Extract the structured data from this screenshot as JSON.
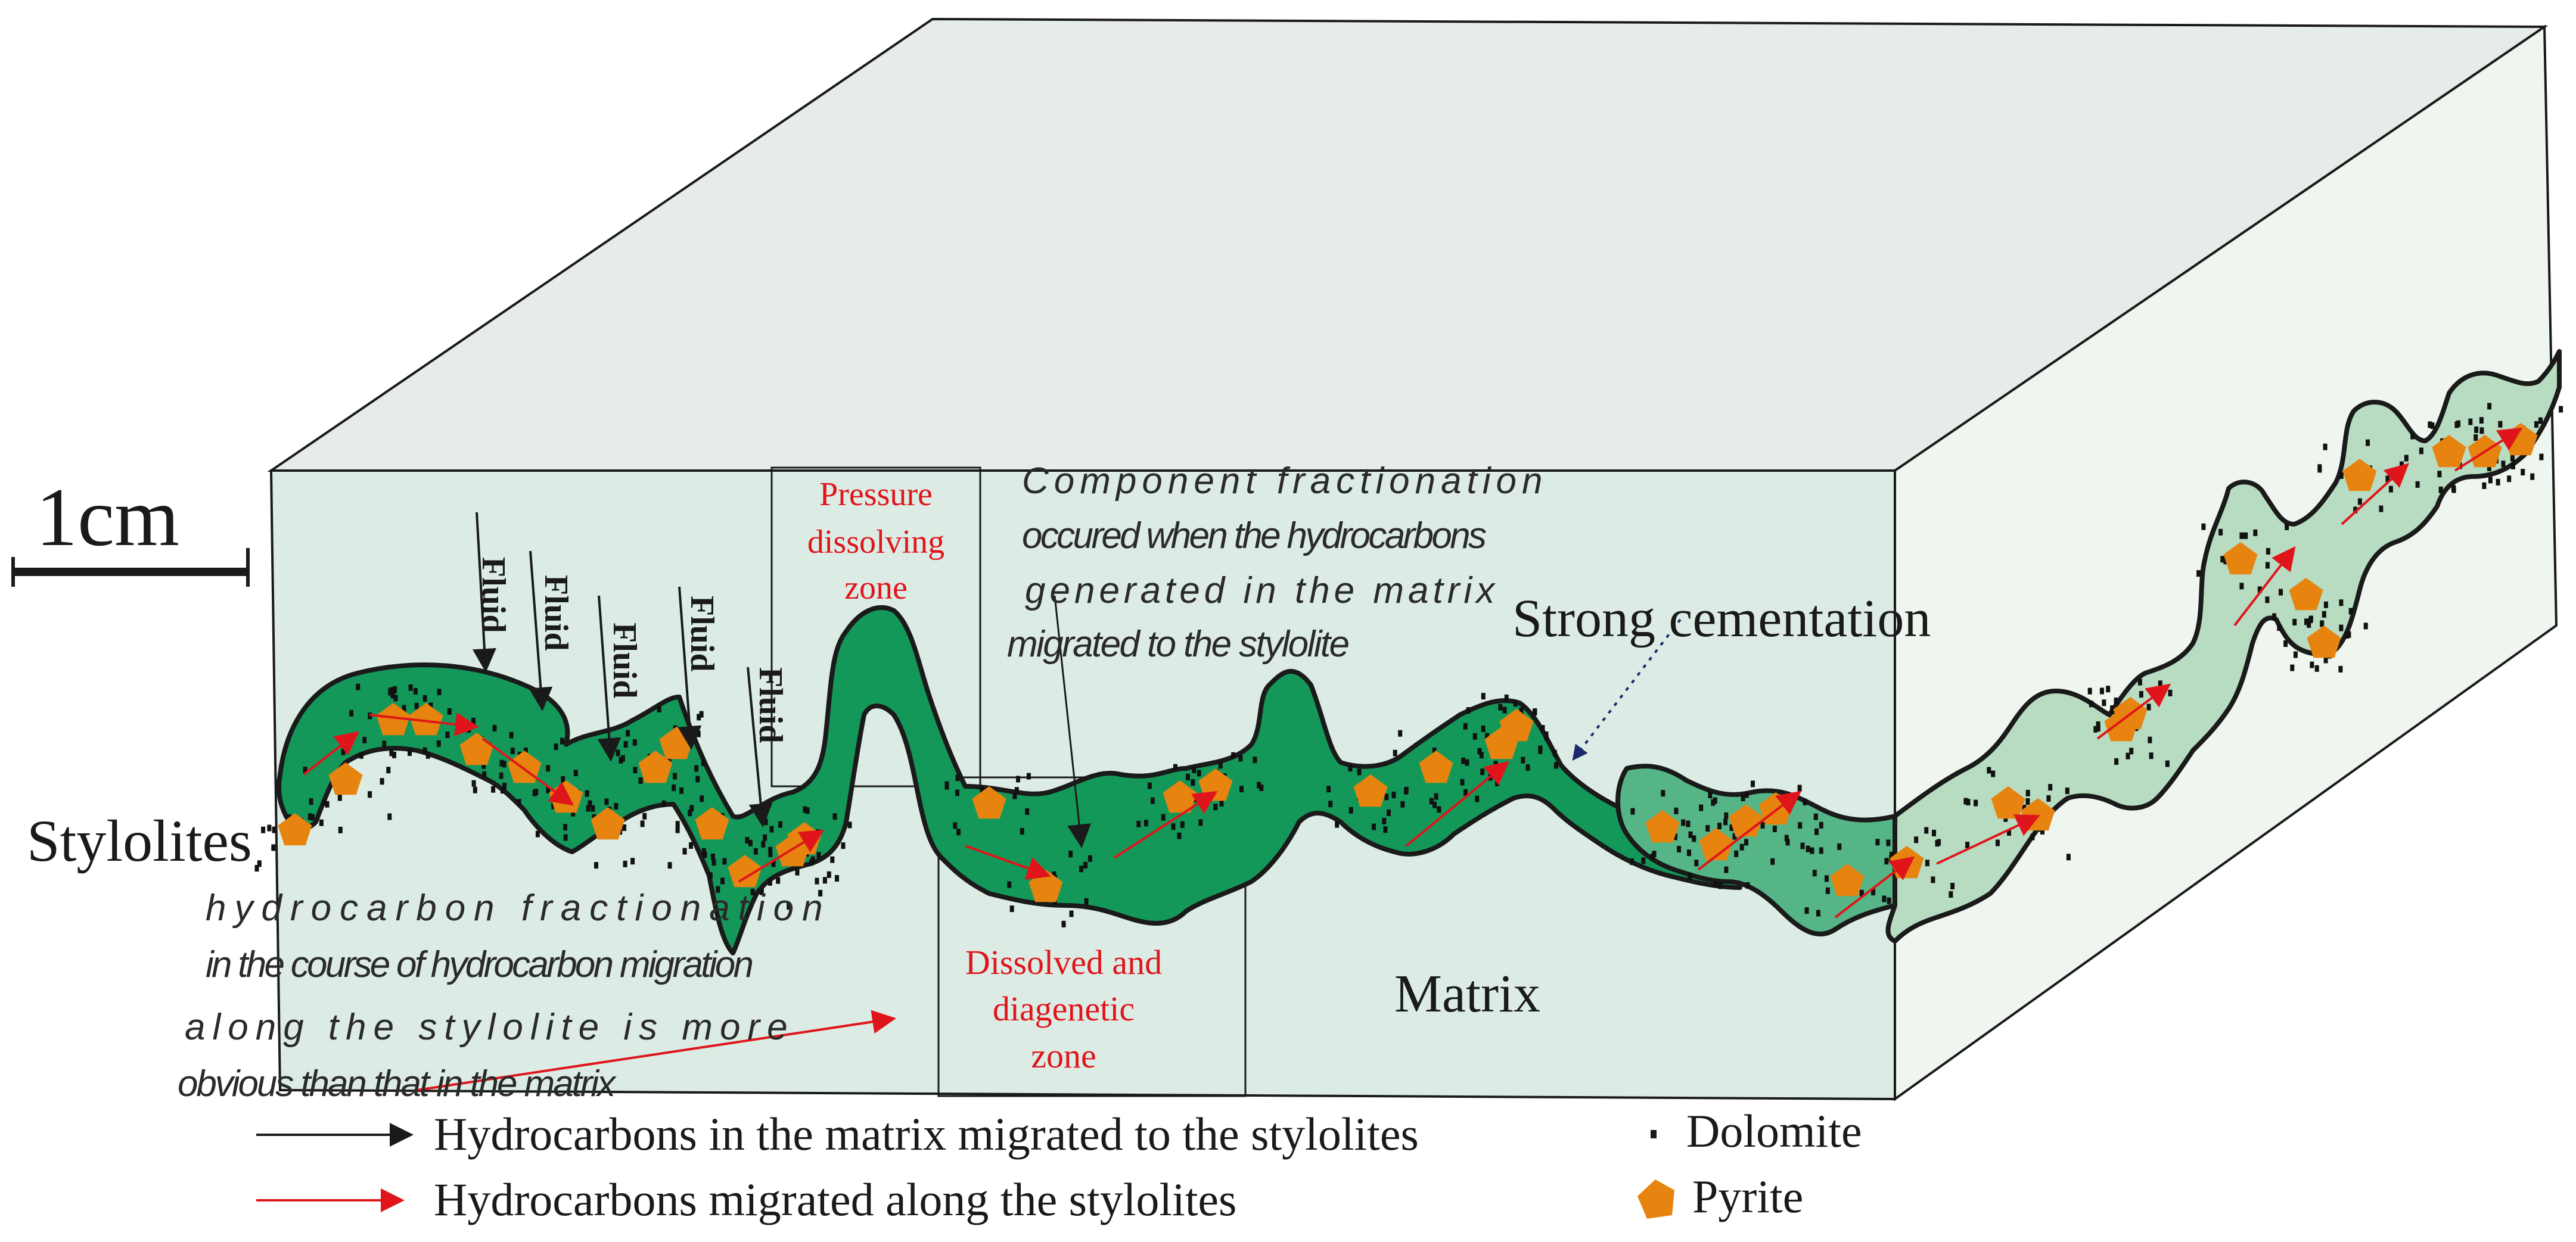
{
  "scale_bar": {
    "label": "1cm"
  },
  "labels": {
    "stylolites": "Stylolites",
    "fluid": "Fluid",
    "pressure_zone": [
      "Pressure",
      "dissolving",
      "zone"
    ],
    "component_note": [
      "Component fractionation",
      "occured when the hydrocarbons",
      "generated in the matrix",
      "migrated to the stylolite"
    ],
    "strong_cementation": "Strong cementation",
    "hydrocarbon_note": [
      "hydrocarbon fractionation",
      "in the course of hydrocarbon migration",
      "along the stylolite is more",
      "obvious than that in the matrix"
    ],
    "dissolved_zone": [
      "Dissolved and",
      "diagenetic",
      "zone"
    ],
    "matrix": "Matrix"
  },
  "legend": {
    "black_arrow": "Hydrocarbons in the matrix migrated to the stylolites",
    "red_arrow": "Hydrocarbons migrated along the stylolites",
    "dolomite": "Dolomite",
    "pyrite": "Pyrite"
  },
  "colors": {
    "block_front": "#dcece5",
    "block_top": "#e6ece8",
    "block_side": "#eff5ef",
    "stylolite_dark": "#14985a",
    "stylolite_mid": "#55b586",
    "stylolite_light": "#b7dcc2",
    "pyrite": "#e7830f",
    "red_arrow": "#e0151b",
    "outline": "#1a1a1a"
  }
}
